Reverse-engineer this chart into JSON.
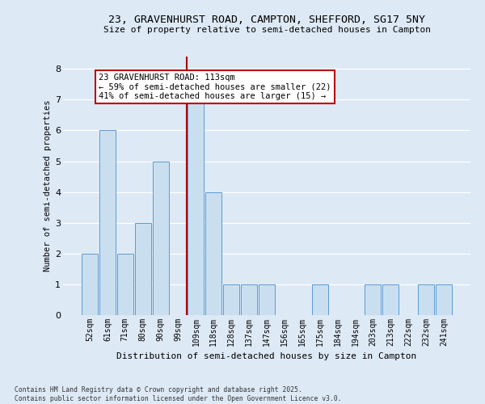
{
  "title_line1": "23, GRAVENHURST ROAD, CAMPTON, SHEFFORD, SG17 5NY",
  "title_line2": "Size of property relative to semi-detached houses in Campton",
  "xlabel": "Distribution of semi-detached houses by size in Campton",
  "ylabel": "Number of semi-detached properties",
  "categories": [
    "52sqm",
    "61sqm",
    "71sqm",
    "80sqm",
    "90sqm",
    "99sqm",
    "109sqm",
    "118sqm",
    "128sqm",
    "137sqm",
    "147sqm",
    "156sqm",
    "165sqm",
    "175sqm",
    "184sqm",
    "194sqm",
    "203sqm",
    "213sqm",
    "222sqm",
    "232sqm",
    "241sqm"
  ],
  "values": [
    2,
    6,
    2,
    3,
    5,
    0,
    7,
    4,
    1,
    1,
    1,
    0,
    0,
    1,
    0,
    0,
    1,
    1,
    0,
    1,
    1
  ],
  "bar_color": "#c9dff0",
  "bar_edge_color": "#5b9bd5",
  "vline_x": 5.5,
  "vline_color": "#aa0000",
  "annotation_text": "23 GRAVENHURST ROAD: 113sqm\n← 59% of semi-detached houses are smaller (22)\n41% of semi-detached houses are larger (15) →",
  "annotation_box_facecolor": "#ffffff",
  "annotation_box_edgecolor": "#bb0000",
  "footer_line1": "Contains HM Land Registry data © Crown copyright and database right 2025.",
  "footer_line2": "Contains public sector information licensed under the Open Government Licence v3.0.",
  "bg_color": "#dde9f5",
  "grid_color": "#ffffff",
  "ylim": [
    0,
    8.4
  ],
  "yticks": [
    0,
    1,
    2,
    3,
    4,
    5,
    6,
    7,
    8
  ]
}
